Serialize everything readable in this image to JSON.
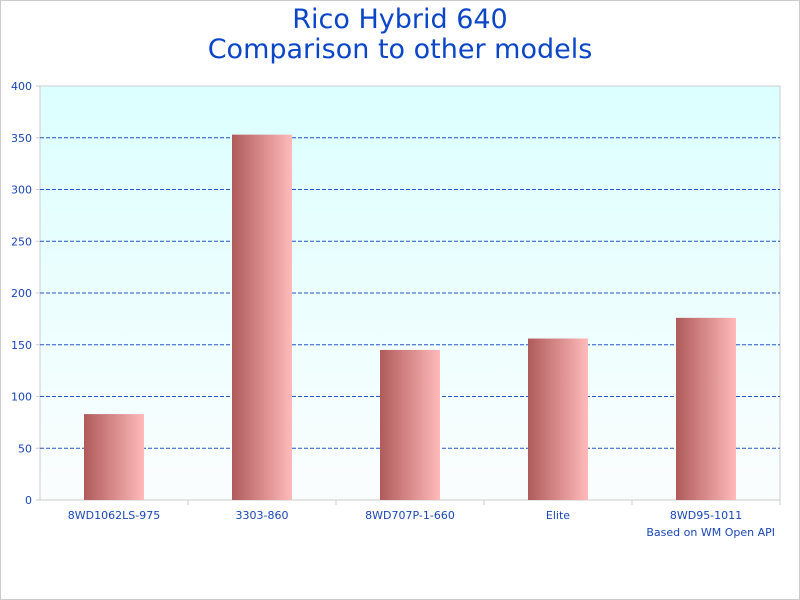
{
  "chart_data": {
    "type": "bar",
    "title": [
      "Rico Hybrid 640",
      "Comparison to other models"
    ],
    "categories": [
      "8WD1062LS-975",
      "3303-860",
      "8WD707P-1-660",
      "Elite",
      "8WD95-1011"
    ],
    "values": [
      83,
      353,
      145,
      156,
      176
    ],
    "ylim": [
      0,
      400
    ],
    "yticks": [
      0,
      50,
      100,
      150,
      200,
      250,
      300,
      350,
      400
    ],
    "xlabel": "",
    "ylabel": "",
    "grid": true,
    "annotation": "Based on WM Open API",
    "colors": {
      "title": "#0b45c8",
      "axis_text": "#1a46b8",
      "grid": "#2255cc",
      "bar_dark": "#b05a5a",
      "bar_light": "#ffbaba",
      "bg_top": "#dcffff",
      "bg_bottom": "#fbfdfd"
    }
  }
}
